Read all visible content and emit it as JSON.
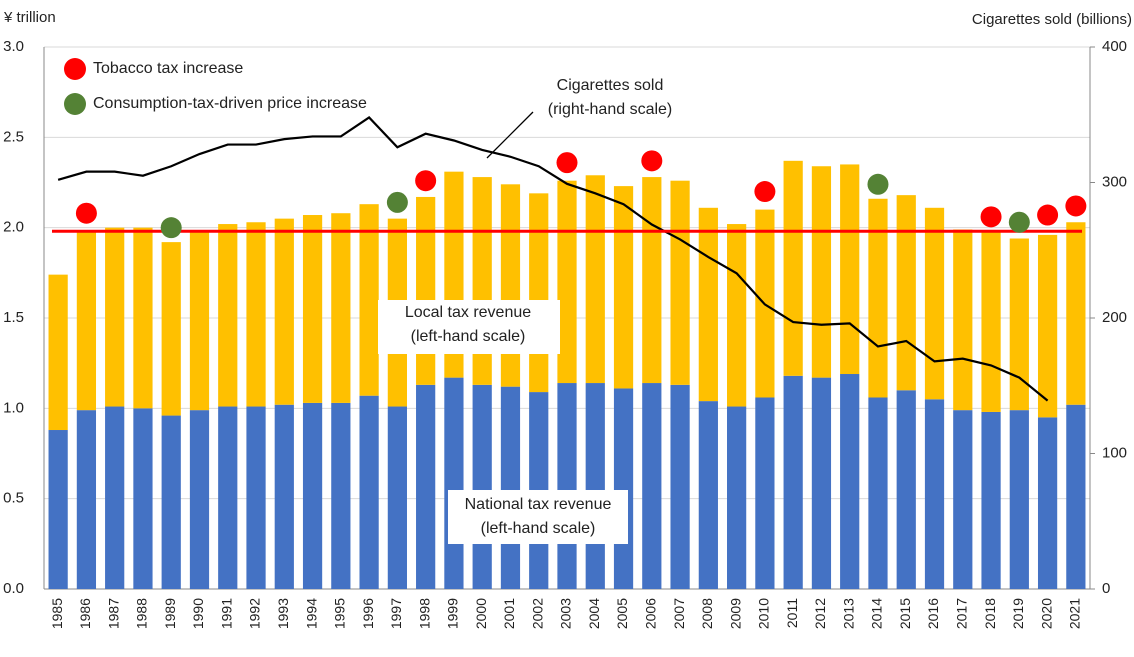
{
  "chart_data": {
    "type": "bar",
    "stacked": true,
    "y_label": "¥ trillion",
    "y2_label": "Cigarettes sold (billions)",
    "categories": [
      "1985",
      "1986",
      "1987",
      "1988",
      "1989",
      "1990",
      "1991",
      "1992",
      "1993",
      "1994",
      "1995",
      "1996",
      "1997",
      "1998",
      "1999",
      "2000",
      "2001",
      "2002",
      "2003",
      "2004",
      "2005",
      "2006",
      "2007",
      "2008",
      "2009",
      "2010",
      "2011",
      "2012",
      "2013",
      "2014",
      "2015",
      "2016",
      "2017",
      "2018",
      "2019",
      "2020",
      "2021"
    ],
    "series": [
      {
        "color": "#4472c4",
        "label_lines": [
          "National tax revenue",
          "(left-hand scale)"
        ],
        "values": [
          0.88,
          0.99,
          1.01,
          1.0,
          0.96,
          0.99,
          1.01,
          1.01,
          1.02,
          1.03,
          1.03,
          1.07,
          1.01,
          1.13,
          1.17,
          1.13,
          1.12,
          1.09,
          1.14,
          1.14,
          1.11,
          1.14,
          1.13,
          1.04,
          1.01,
          1.06,
          1.18,
          1.17,
          1.19,
          1.06,
          1.1,
          1.05,
          0.99,
          0.98,
          0.99,
          0.95,
          1.02
        ]
      },
      {
        "color": "#ffc000",
        "label_lines": [
          "Local tax revenue",
          "(left-hand scale)"
        ],
        "values": [
          0.86,
          0.99,
          0.99,
          1.0,
          0.96,
          0.99,
          1.01,
          1.02,
          1.03,
          1.04,
          1.05,
          1.06,
          1.04,
          1.04,
          1.14,
          1.15,
          1.12,
          1.1,
          1.12,
          1.15,
          1.12,
          1.14,
          1.13,
          1.07,
          1.01,
          1.04,
          1.19,
          1.17,
          1.16,
          1.1,
          1.08,
          1.06,
          1.0,
          1.0,
          0.95,
          1.01,
          1.01
        ]
      },
      {
        "type": "line",
        "axis": "y2",
        "color": "#000000",
        "label_lines": [
          "Cigarettes sold",
          "(right-hand scale)"
        ],
        "values": [
          302,
          308,
          308,
          305,
          312,
          321,
          328,
          328,
          332,
          334,
          334,
          348,
          326,
          336,
          331,
          324,
          319,
          312,
          299,
          292,
          284,
          269,
          258,
          245,
          233,
          210,
          197,
          195,
          196,
          179,
          183,
          168,
          170,
          165,
          156,
          139,
          null
        ]
      }
    ],
    "markers": [
      {
        "name": "Tobacco tax increase",
        "color": "#ff0000",
        "x": [
          "1986",
          "1998",
          "2003",
          "2006",
          "2010",
          "2018",
          "2020",
          "2021"
        ],
        "values": [
          2.08,
          2.26,
          2.36,
          2.37,
          2.2,
          2.06,
          2.07,
          2.12
        ]
      },
      {
        "name": "Consumption-tax-driven price increase",
        "color": "#548235",
        "x": [
          "1989",
          "1997",
          "2014",
          "2019"
        ],
        "values": [
          2.0,
          2.14,
          2.24,
          2.03
        ]
      }
    ],
    "reference_line": {
      "value": 1.98,
      "color": "#ff0000"
    },
    "ylim": [
      0,
      3
    ],
    "yticks": [
      {
        "value": 0,
        "label": "0.0"
      },
      0.5,
      {
        "value": 1,
        "label": "1.0"
      },
      1.5,
      {
        "value": 2,
        "label": "2.0"
      },
      2.5,
      {
        "value": 3,
        "label": "3.0"
      }
    ],
    "y2lim": [
      0,
      400
    ],
    "y2ticks": [
      0,
      100,
      200,
      300,
      400
    ],
    "grid": true
  }
}
